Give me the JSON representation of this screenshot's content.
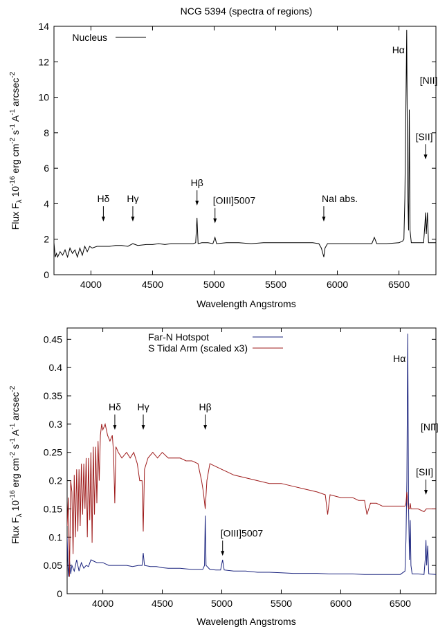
{
  "chart_data": [
    {
      "type": "line",
      "title": "NCG 5394 (spectra of regions)",
      "xlabel": "Wavelength Angstroms",
      "ylabel": "Flux Fλ 10^-16 erg cm^-2 s^-1 A^-1 arcsec^-2",
      "xlim": [
        3700,
        6800
      ],
      "ylim": [
        0,
        14
      ],
      "xticks": [
        4000,
        4500,
        5000,
        5500,
        6000,
        6500
      ],
      "yticks": [
        0,
        2,
        4,
        6,
        8,
        10,
        12,
        14
      ],
      "grid": false,
      "legend_position": "top-left",
      "series": [
        {
          "name": "Nucleus",
          "color": "#000000",
          "x": [
            3700,
            3710,
            3720,
            3730,
            3750,
            3770,
            3790,
            3810,
            3830,
            3850,
            3870,
            3890,
            3910,
            3930,
            3950,
            3970,
            3990,
            4010,
            4050,
            4101,
            4150,
            4200,
            4250,
            4300,
            4340,
            4380,
            4450,
            4500,
            4550,
            4600,
            4650,
            4700,
            4750,
            4800,
            4830,
            4850,
            4861,
            4870,
            4900,
            4950,
            4990,
            5007,
            5020,
            5100,
            5200,
            5300,
            5400,
            5500,
            5600,
            5700,
            5800,
            5850,
            5870,
            5890,
            5900,
            5920,
            6000,
            6100,
            6200,
            6280,
            6300,
            6320,
            6400,
            6500,
            6530,
            6540,
            6548,
            6556,
            6563,
            6570,
            6578,
            6584,
            6590,
            6600,
            6650,
            6700,
            6710,
            6716,
            6722,
            6731,
            6740,
            6800
          ],
          "y": [
            1.8,
            1.0,
            1.2,
            1.0,
            1.3,
            1.1,
            1.4,
            1.0,
            1.5,
            1.2,
            1.4,
            1.0,
            1.5,
            1.1,
            1.6,
            1.3,
            1.6,
            1.5,
            1.6,
            1.6,
            1.6,
            1.65,
            1.65,
            1.6,
            1.75,
            1.65,
            1.7,
            1.7,
            1.75,
            1.7,
            1.75,
            1.75,
            1.75,
            1.75,
            1.75,
            1.8,
            3.2,
            1.75,
            1.8,
            1.8,
            1.75,
            2.1,
            1.75,
            1.8,
            1.8,
            1.75,
            1.8,
            1.8,
            1.8,
            1.8,
            1.8,
            1.75,
            1.5,
            1.0,
            1.5,
            1.75,
            1.75,
            1.75,
            1.75,
            1.75,
            2.1,
            1.75,
            1.75,
            1.8,
            1.9,
            2.0,
            4.3,
            9.5,
            13.8,
            5.0,
            2.5,
            9.3,
            2.5,
            1.8,
            1.8,
            1.8,
            2.8,
            3.5,
            2.3,
            3.5,
            1.8,
            1.8
          ]
        }
      ],
      "annotations": [
        {
          "text": "Hδ",
          "x": 4101,
          "arrow_y": 3.0
        },
        {
          "text": "Hγ",
          "x": 4340,
          "arrow_y": 3.0
        },
        {
          "text": "Hβ",
          "x": 4861,
          "arrow_y": 3.9
        },
        {
          "text": "[OIII]5007",
          "x": 5007,
          "arrow_y": 2.9
        },
        {
          "text": "NaI abs.",
          "x": 5890,
          "arrow_y": 3.0
        },
        {
          "text": "Hα",
          "x": 6563,
          "arrow_y": null
        },
        {
          "text": "[NII]",
          "x": 6584,
          "arrow_y": null
        },
        {
          "text": "[SII]",
          "x": 6716,
          "arrow_y": 6.5
        }
      ]
    },
    {
      "type": "line",
      "title": "",
      "xlabel": "Wavelength Angstroms",
      "ylabel": "Flux Fλ 10^-16 erg cm^-2 s^-1 A^-1 arcsec^-2",
      "xlim": [
        3700,
        6800
      ],
      "ylim": [
        0,
        0.47
      ],
      "xticks": [
        4000,
        4500,
        5000,
        5500,
        6000,
        6500
      ],
      "yticks": [
        0,
        0.05,
        0.1,
        0.15,
        0.2,
        0.25,
        0.3,
        0.35,
        0.4,
        0.45
      ],
      "grid": false,
      "legend_position": "top-left",
      "series": [
        {
          "name": "Far-N Hotspot",
          "color": "#1a237e",
          "x": [
            3700,
            3710,
            3720,
            3730,
            3740,
            3760,
            3780,
            3800,
            3820,
            3840,
            3860,
            3880,
            3900,
            3950,
            4000,
            4050,
            4101,
            4150,
            4200,
            4250,
            4300,
            4330,
            4340,
            4350,
            4400,
            4450,
            4500,
            4550,
            4600,
            4650,
            4700,
            4750,
            4800,
            4840,
            4855,
            4861,
            4868,
            4900,
            4950,
            4990,
            5007,
            5020,
            5100,
            5200,
            5300,
            5400,
            5500,
            5600,
            5700,
            5800,
            5900,
            6000,
            6100,
            6200,
            6300,
            6400,
            6500,
            6540,
            6548,
            6556,
            6563,
            6570,
            6578,
            6584,
            6590,
            6600,
            6650,
            6700,
            6710,
            6716,
            6722,
            6731,
            6740,
            6800
          ],
          "y": [
            0.1,
            0.03,
            0.06,
            0.035,
            0.05,
            0.04,
            0.06,
            0.04,
            0.055,
            0.045,
            0.05,
            0.048,
            0.06,
            0.055,
            0.055,
            0.05,
            0.05,
            0.05,
            0.05,
            0.048,
            0.05,
            0.05,
            0.072,
            0.05,
            0.048,
            0.048,
            0.046,
            0.045,
            0.045,
            0.045,
            0.044,
            0.043,
            0.043,
            0.043,
            0.05,
            0.138,
            0.05,
            0.043,
            0.042,
            0.042,
            0.06,
            0.042,
            0.04,
            0.04,
            0.038,
            0.038,
            0.037,
            0.036,
            0.036,
            0.036,
            0.035,
            0.035,
            0.035,
            0.034,
            0.034,
            0.034,
            0.034,
            0.04,
            0.095,
            0.2,
            0.46,
            0.15,
            0.06,
            0.13,
            0.05,
            0.035,
            0.035,
            0.034,
            0.06,
            0.095,
            0.05,
            0.085,
            0.035,
            0.034
          ]
        },
        {
          "name": "S Tidal Arm (scaled x3)",
          "color": "#9e1b1b",
          "x": [
            3700,
            3710,
            3720,
            3730,
            3740,
            3750,
            3760,
            3770,
            3780,
            3790,
            3800,
            3810,
            3820,
            3830,
            3840,
            3850,
            3860,
            3870,
            3880,
            3890,
            3900,
            3910,
            3920,
            3930,
            3940,
            3950,
            3960,
            3970,
            3980,
            3990,
            4000,
            4020,
            4040,
            4060,
            4080,
            4090,
            4101,
            4110,
            4130,
            4160,
            4200,
            4230,
            4260,
            4290,
            4310,
            4330,
            4340,
            4350,
            4380,
            4420,
            4460,
            4500,
            4550,
            4600,
            4650,
            4700,
            4750,
            4800,
            4830,
            4845,
            4861,
            4875,
            4900,
            4950,
            5000,
            5050,
            5100,
            5200,
            5300,
            5400,
            5500,
            5600,
            5700,
            5800,
            5870,
            5890,
            5910,
            6000,
            6100,
            6150,
            6200,
            6220,
            6250,
            6300,
            6350,
            6400,
            6450,
            6500,
            6540,
            6548,
            6556,
            6563,
            6570,
            6578,
            6584,
            6590,
            6600,
            6650,
            6700,
            6720,
            6750,
            6800
          ],
          "y": [
            0.12,
            0.17,
            0.03,
            0.2,
            0.18,
            0.07,
            0.21,
            0.1,
            0.22,
            0.11,
            0.22,
            0.12,
            0.23,
            0.14,
            0.23,
            0.15,
            0.24,
            0.1,
            0.24,
            0.13,
            0.25,
            0.09,
            0.26,
            0.14,
            0.26,
            0.16,
            0.27,
            0.2,
            0.28,
            0.3,
            0.29,
            0.3,
            0.28,
            0.27,
            0.28,
            0.25,
            0.16,
            0.26,
            0.25,
            0.24,
            0.25,
            0.24,
            0.25,
            0.23,
            0.2,
            0.2,
            0.11,
            0.22,
            0.24,
            0.25,
            0.24,
            0.25,
            0.24,
            0.24,
            0.24,
            0.235,
            0.235,
            0.23,
            0.2,
            0.18,
            0.15,
            0.2,
            0.23,
            0.225,
            0.22,
            0.215,
            0.21,
            0.205,
            0.2,
            0.195,
            0.195,
            0.19,
            0.185,
            0.18,
            0.175,
            0.14,
            0.175,
            0.17,
            0.17,
            0.165,
            0.165,
            0.14,
            0.16,
            0.16,
            0.155,
            0.155,
            0.155,
            0.155,
            0.155,
            0.16,
            0.18,
            0.16,
            0.15,
            0.15,
            0.16,
            0.15,
            0.15,
            0.15,
            0.145,
            0.15,
            0.15,
            0.15
          ]
        }
      ],
      "annotations": [
        {
          "text": "Hδ",
          "x": 4101,
          "arrow_y": 0.29
        },
        {
          "text": "Hγ",
          "x": 4340,
          "arrow_y": 0.29
        },
        {
          "text": "Hβ",
          "x": 4861,
          "arrow_y": 0.29
        },
        {
          "text": "[OIII]5007",
          "x": 5007,
          "arrow_y": 0.067
        },
        {
          "text": "Hα",
          "x": 6563,
          "arrow_y": null
        },
        {
          "text": "[NII]",
          "x": 6584,
          "arrow_y": null
        },
        {
          "text": "[SII]",
          "x": 6716,
          "arrow_y": 0.175
        }
      ]
    }
  ]
}
